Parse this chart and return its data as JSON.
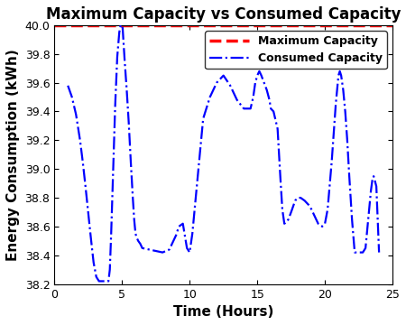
{
  "title": "Maximum Capacity vs Consumed Capacity",
  "xlabel": "Time (Hours)",
  "ylabel": "Energy Consumption (kWh)",
  "xlim": [
    0,
    25
  ],
  "ylim": [
    38.2,
    40.0
  ],
  "yticks": [
    38.2,
    38.4,
    38.6,
    38.8,
    39.0,
    39.2,
    39.4,
    39.6,
    39.8,
    40.0
  ],
  "xticks": [
    0,
    5,
    10,
    15,
    20,
    25
  ],
  "max_capacity_value": 40.0,
  "max_capacity_color": "#FF0000",
  "consumed_color": "#0000FF",
  "legend_max_label": "Maximum Capacity",
  "legend_consumed_label": "Consumed Capacity",
  "title_fontsize": 12,
  "label_fontsize": 11,
  "legend_fontsize": 9,
  "tick_fontsize": 9,
  "t": [
    1.0,
    1.3,
    1.6,
    1.9,
    2.1,
    2.3,
    2.5,
    2.7,
    2.9,
    3.1,
    3.3,
    3.6,
    3.9,
    4.0,
    4.1,
    4.2,
    4.35,
    4.5,
    4.65,
    4.8,
    4.9,
    5.0,
    5.05,
    5.1,
    5.2,
    5.35,
    5.5,
    5.65,
    5.8,
    5.9,
    6.0,
    6.1,
    6.2,
    6.35,
    6.5,
    7.0,
    7.5,
    8.0,
    8.5,
    9.0,
    9.2,
    9.5,
    9.8,
    10.0,
    10.2,
    10.5,
    10.8,
    11.0,
    11.5,
    12.0,
    12.5,
    13.0,
    13.5,
    14.0,
    14.3,
    14.5,
    14.7,
    14.85,
    15.0,
    15.15,
    15.3,
    15.5,
    15.7,
    15.9,
    16.0,
    16.2,
    16.5,
    16.7,
    16.85,
    17.0,
    17.15,
    17.3,
    17.5,
    17.8,
    18.0,
    18.2,
    18.5,
    18.8,
    19.0,
    19.2,
    19.5,
    19.8,
    20.0,
    20.2,
    20.5,
    20.8,
    21.0,
    21.1,
    21.2,
    21.35,
    21.5,
    21.65,
    21.8,
    22.0,
    22.2,
    22.5,
    22.8,
    23.0,
    23.2,
    23.4,
    23.5,
    23.6,
    23.8,
    24.0
  ],
  "v": [
    39.58,
    39.5,
    39.38,
    39.2,
    39.05,
    38.88,
    38.7,
    38.52,
    38.35,
    38.25,
    38.22,
    38.22,
    38.22,
    38.22,
    38.3,
    38.55,
    39.0,
    39.45,
    39.78,
    39.95,
    40.0,
    40.0,
    39.98,
    39.9,
    39.75,
    39.55,
    39.32,
    39.05,
    38.8,
    38.65,
    38.55,
    38.52,
    38.5,
    38.48,
    38.45,
    38.44,
    38.43,
    38.42,
    38.44,
    38.54,
    38.6,
    38.62,
    38.45,
    38.42,
    38.55,
    38.85,
    39.15,
    39.35,
    39.5,
    39.6,
    39.65,
    39.58,
    39.48,
    39.42,
    39.42,
    39.42,
    39.5,
    39.6,
    39.65,
    39.68,
    39.65,
    39.6,
    39.55,
    39.48,
    39.42,
    39.4,
    39.28,
    38.95,
    38.72,
    38.62,
    38.63,
    38.65,
    38.7,
    38.78,
    38.8,
    38.8,
    38.78,
    38.75,
    38.72,
    38.68,
    38.62,
    38.6,
    38.62,
    38.72,
    39.05,
    39.45,
    39.65,
    39.68,
    39.65,
    39.55,
    39.4,
    39.2,
    38.95,
    38.65,
    38.42,
    38.42,
    38.42,
    38.45,
    38.65,
    38.85,
    38.92,
    38.95,
    38.88,
    38.42
  ]
}
